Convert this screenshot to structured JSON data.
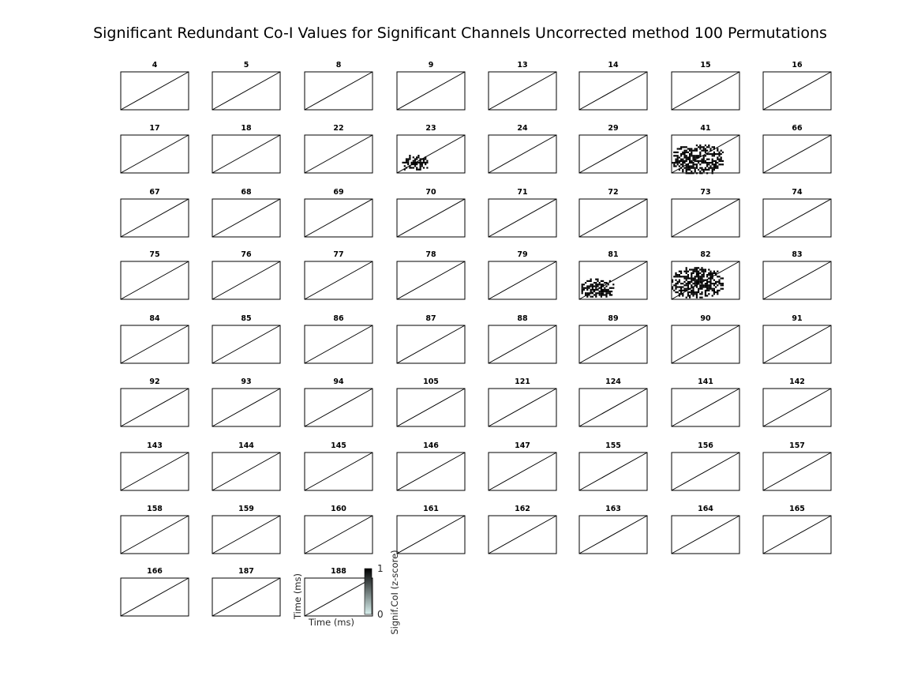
{
  "figure": {
    "title": "Significant Redundant Co-I Values for Significant Channels Uncorrected method 100 Permutations"
  },
  "chart_data": {
    "type": "heatmap",
    "title": "Significant Redundant Co-I Values for Significant Channels Uncorrected method 100 Permutations",
    "panel_titles": [
      "4",
      "5",
      "8",
      "9",
      "13",
      "14",
      "15",
      "16",
      "17",
      "18",
      "22",
      "23",
      "24",
      "29",
      "41",
      "66",
      "67",
      "68",
      "69",
      "70",
      "71",
      "72",
      "73",
      "74",
      "75",
      "76",
      "77",
      "78",
      "79",
      "81",
      "82",
      "83",
      "84",
      "85",
      "86",
      "87",
      "88",
      "89",
      "90",
      "91",
      "92",
      "93",
      "94",
      "105",
      "121",
      "124",
      "141",
      "142",
      "143",
      "144",
      "145",
      "146",
      "147",
      "155",
      "156",
      "157",
      "158",
      "159",
      "160",
      "161",
      "162",
      "163",
      "164",
      "165",
      "166",
      "187",
      "188"
    ],
    "labeled_panel": "188",
    "xlabel": "Time (ms)",
    "ylabel": "Time (ms)",
    "diagonal_line": true,
    "colorbar": {
      "label": "Signif.CoI (z-score)",
      "min": 0,
      "max": 1,
      "ticks": [
        "0",
        "1"
      ],
      "colors": [
        "#d9f0ee",
        "#000000"
      ]
    },
    "significant_regions": [
      {
        "panel": "23",
        "x": [
          0.05,
          0.45
        ],
        "y": [
          0.08,
          0.48
        ],
        "density": 0.6
      },
      {
        "panel": "41",
        "x": [
          0.0,
          0.75
        ],
        "y": [
          0.0,
          0.75
        ],
        "density": 0.62
      },
      {
        "panel": "81",
        "x": [
          0.03,
          0.5
        ],
        "y": [
          0.05,
          0.55
        ],
        "density": 0.68
      },
      {
        "panel": "82",
        "x": [
          0.0,
          0.75
        ],
        "y": [
          0.05,
          0.85
        ],
        "density": 0.62
      }
    ]
  }
}
